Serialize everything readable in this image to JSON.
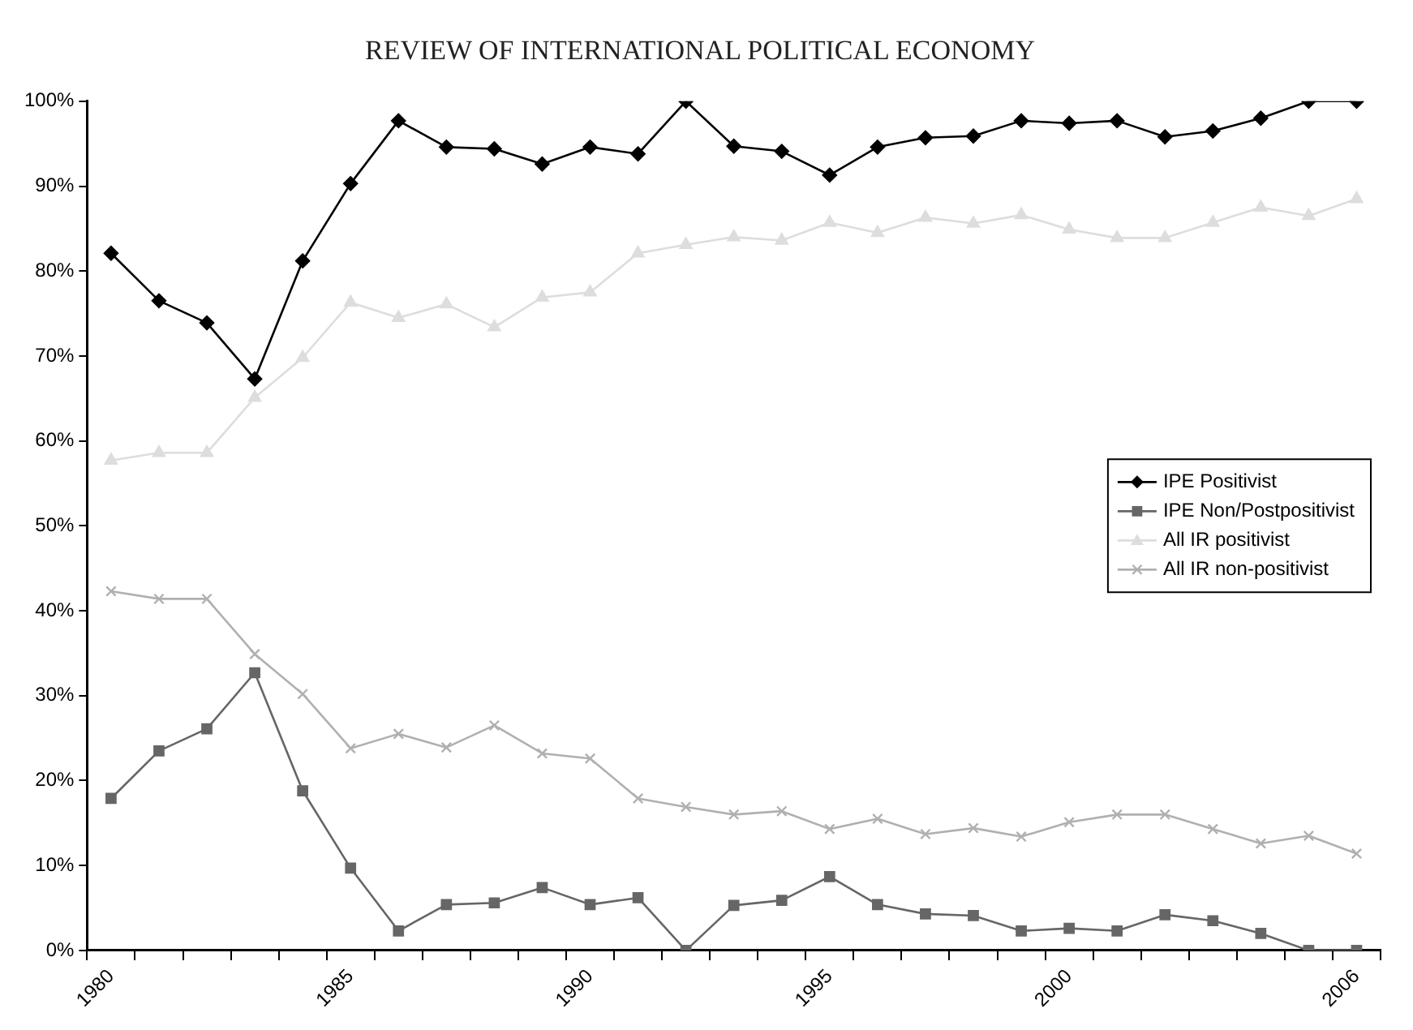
{
  "chart_data": {
    "type": "line",
    "title": "REVIEW OF INTERNATIONAL POLITICAL ECONOMY",
    "categories": [
      "1980",
      null,
      null,
      null,
      null,
      "1985",
      null,
      null,
      null,
      null,
      "1990",
      null,
      null,
      null,
      null,
      "1995",
      null,
      null,
      null,
      null,
      "2000",
      null,
      null,
      null,
      null,
      null,
      "2006"
    ],
    "series": [
      {
        "name": "IPE Positivist",
        "color": "#000000",
        "marker": "diamond",
        "values": [
          82.1,
          76.5,
          73.9,
          67.3,
          81.2,
          90.3,
          97.7,
          94.6,
          94.4,
          92.6,
          94.6,
          93.8,
          100,
          94.7,
          94.1,
          91.3,
          94.6,
          95.7,
          95.9,
          97.7,
          97.4,
          97.7,
          95.8,
          96.5,
          98.0,
          100,
          100
        ]
      },
      {
        "name": "IPE Non/Postpositivist",
        "color": "#666666",
        "marker": "square",
        "values": [
          17.9,
          23.5,
          26.1,
          32.7,
          18.8,
          9.7,
          2.3,
          5.4,
          5.6,
          7.4,
          5.4,
          6.2,
          0,
          5.3,
          5.9,
          8.7,
          5.4,
          4.3,
          4.1,
          2.3,
          2.6,
          2.3,
          4.2,
          3.5,
          2.0,
          0,
          0
        ]
      },
      {
        "name": "All IR positivist",
        "color": "#dddddd",
        "marker": "triangle",
        "values": [
          57.7,
          58.6,
          58.6,
          65.1,
          69.8,
          76.3,
          74.5,
          76.1,
          73.4,
          76.9,
          77.5,
          82.1,
          83.1,
          84.0,
          83.6,
          85.7,
          84.5,
          86.3,
          85.6,
          86.6,
          84.9,
          83.9,
          83.9,
          85.7,
          87.5,
          86.5,
          88.5
        ]
      },
      {
        "name": "All IR non-positivist",
        "color": "#b0b0b0",
        "marker": "cross",
        "values": [
          42.3,
          41.4,
          41.4,
          34.9,
          30.2,
          23.8,
          25.5,
          23.9,
          26.5,
          23.2,
          22.6,
          17.9,
          16.9,
          16.0,
          16.4,
          14.3,
          15.5,
          13.7,
          14.4,
          13.4,
          15.1,
          16.0,
          16.0,
          14.3,
          12.6,
          13.5,
          11.4
        ]
      }
    ],
    "ylim": [
      0,
      100
    ],
    "yticks": [
      {
        "value": 0,
        "label": "0%"
      },
      {
        "value": 10,
        "label": "10%"
      },
      {
        "value": 20,
        "label": "20%"
      },
      {
        "value": 30,
        "label": "30%"
      },
      {
        "value": 40,
        "label": "40%"
      },
      {
        "value": 50,
        "label": "50%"
      },
      {
        "value": 60,
        "label": "60%"
      },
      {
        "value": 70,
        "label": "70%"
      },
      {
        "value": 80,
        "label": "80%"
      },
      {
        "value": 90,
        "label": "90%"
      },
      {
        "value": 100,
        "label": "100%"
      }
    ],
    "grid": false,
    "legend": "right",
    "line_style": "solid"
  }
}
